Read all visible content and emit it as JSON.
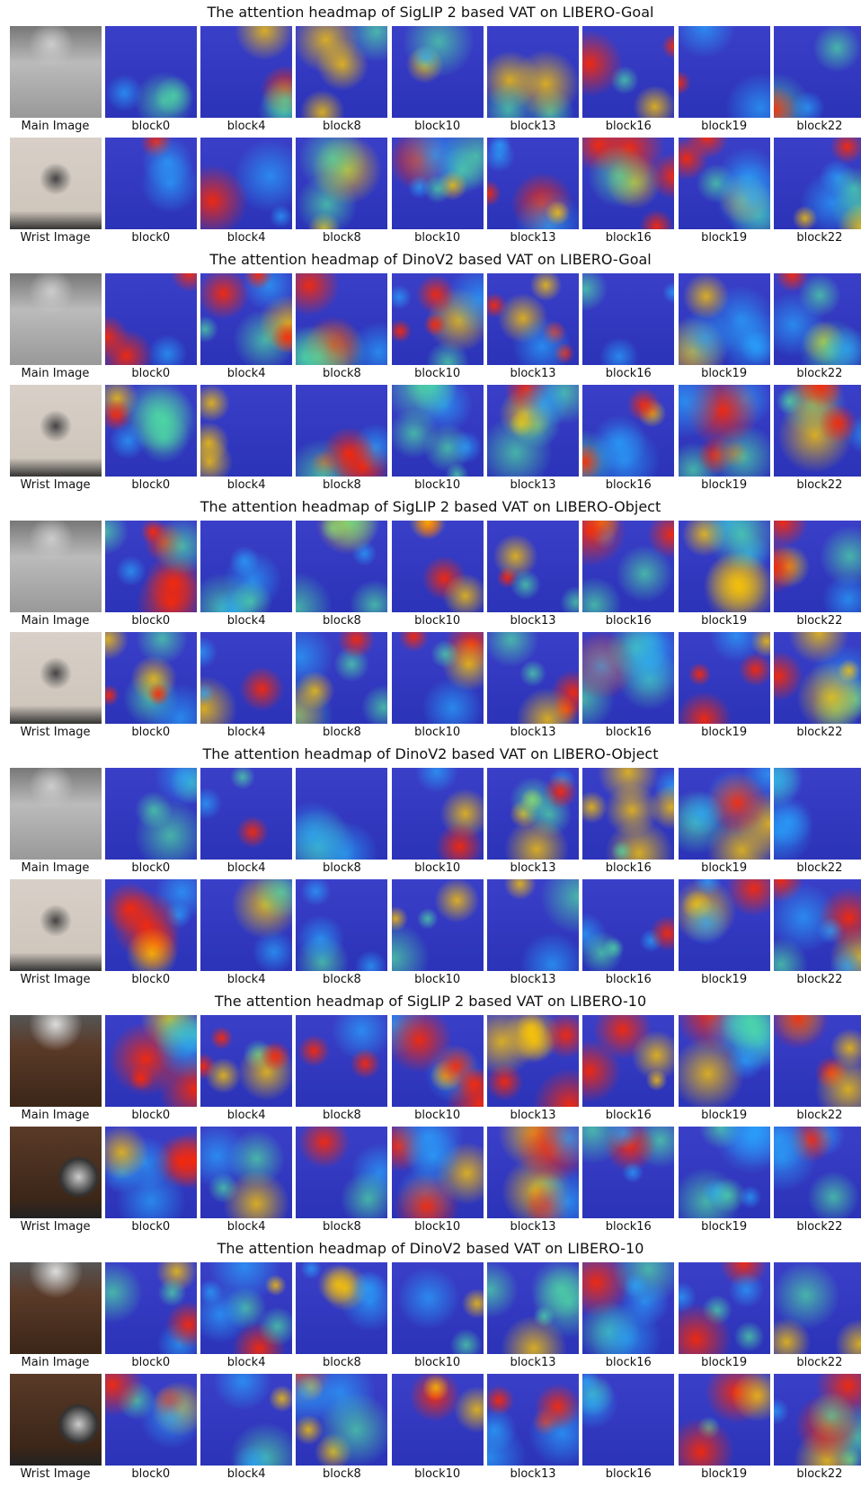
{
  "sections": [
    {
      "title": "The attention headmap of SigLIP 2 based VAT on LIBERO-Goal",
      "rows": [
        {
          "labels": [
            "Main Image",
            "block0",
            "block4",
            "block8",
            "block10",
            "block13",
            "block16",
            "block19",
            "block22"
          ]
        },
        {
          "labels": [
            "Wrist Image",
            "block0",
            "block4",
            "block8",
            "block10",
            "block13",
            "block16",
            "block19",
            "block22"
          ]
        }
      ]
    },
    {
      "title": "The attention headmap of DinoV2 based VAT on LIBERO-Goal",
      "rows": [
        {
          "labels": [
            "Main Image",
            "block0",
            "block4",
            "block8",
            "block10",
            "block13",
            "block16",
            "block19",
            "block22"
          ]
        },
        {
          "labels": [
            "Wrist Image",
            "block0",
            "block4",
            "block8",
            "block10",
            "block13",
            "block16",
            "block19",
            "block22"
          ]
        }
      ]
    },
    {
      "title": "The attention headmap of SigLIP 2 based VAT on LIBERO-Object",
      "rows": [
        {
          "labels": [
            "Main Image",
            "block0",
            "block4",
            "block8",
            "block10",
            "block13",
            "block16",
            "block19",
            "block22"
          ]
        },
        {
          "labels": [
            "Wrist Image",
            "block0",
            "block4",
            "block8",
            "block10",
            "block13",
            "block16",
            "block19",
            "block22"
          ]
        }
      ]
    },
    {
      "title": "The attention headmap of DinoV2 based VAT on LIBERO-Object",
      "rows": [
        {
          "labels": [
            "Main Image",
            "block0",
            "block4",
            "block8",
            "block10",
            "block13",
            "block16",
            "block19",
            "block22"
          ]
        },
        {
          "labels": [
            "Wrist Image",
            "block0",
            "block4",
            "block8",
            "block10",
            "block13",
            "block16",
            "block19",
            "block22"
          ]
        }
      ]
    },
    {
      "title": "The attention headmap of SigLIP 2 based VAT on LIBERO-10",
      "rows": [
        {
          "labels": [
            "Main Image",
            "block0",
            "block4",
            "block8",
            "block10",
            "block13",
            "block16",
            "block19",
            "block22"
          ]
        },
        {
          "labels": [
            "Wrist Image",
            "block0",
            "block4",
            "block8",
            "block10",
            "block13",
            "block16",
            "block19",
            "block22"
          ]
        }
      ]
    },
    {
      "title": "The attention headmap of DinoV2 based VAT on LIBERO-10",
      "rows": [
        {
          "labels": [
            "Main Image",
            "block0",
            "block4",
            "block8",
            "block10",
            "block13",
            "block16",
            "block19",
            "block22"
          ]
        },
        {
          "labels": [
            "Wrist Image",
            "block0",
            "block4",
            "block8",
            "block10",
            "block13",
            "block16",
            "block19",
            "block22"
          ]
        }
      ]
    }
  ]
}
